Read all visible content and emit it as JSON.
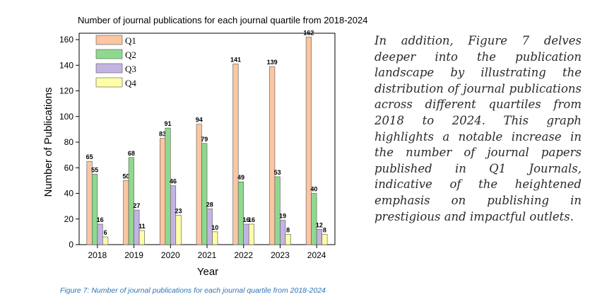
{
  "chart_data": {
    "type": "bar",
    "title": "Number of journal publications for each journal quartile from 2018-2024",
    "xlabel": "Year",
    "ylabel": "Number of Publications",
    "ylim": [
      0,
      165
    ],
    "yticks": [
      0,
      20,
      40,
      60,
      80,
      100,
      120,
      140,
      160
    ],
    "categories": [
      "2018",
      "2019",
      "2020",
      "2021",
      "2022",
      "2023",
      "2024"
    ],
    "series": [
      {
        "name": "Q1",
        "color": "#FBC6A1",
        "values": [
          65,
          50,
          83,
          94,
          141,
          139,
          162
        ]
      },
      {
        "name": "Q2",
        "color": "#8FD98F",
        "values": [
          55,
          68,
          91,
          79,
          49,
          53,
          40
        ]
      },
      {
        "name": "Q3",
        "color": "#C4B4E4",
        "values": [
          16,
          27,
          46,
          28,
          16,
          19,
          12
        ]
      },
      {
        "name": "Q4",
        "color": "#FFFFA8",
        "values": [
          6,
          11,
          23,
          10,
          16,
          8,
          8
        ]
      }
    ],
    "legend_position": "top-left",
    "grid": false
  },
  "paragraph": "In addition, Figure 7 delves deeper into the publication landscape by illustrating the distribution of journal publications across different quartiles from 2018 to 2024. This graph highlights a notable increase in the number of journal papers published in Q1 Journals, indicative of the heightened emphasis on publishing in prestigious and impactful outlets.",
  "caption": "Figure 7: Number of journal publications for each journal quartile from 2018-2024"
}
